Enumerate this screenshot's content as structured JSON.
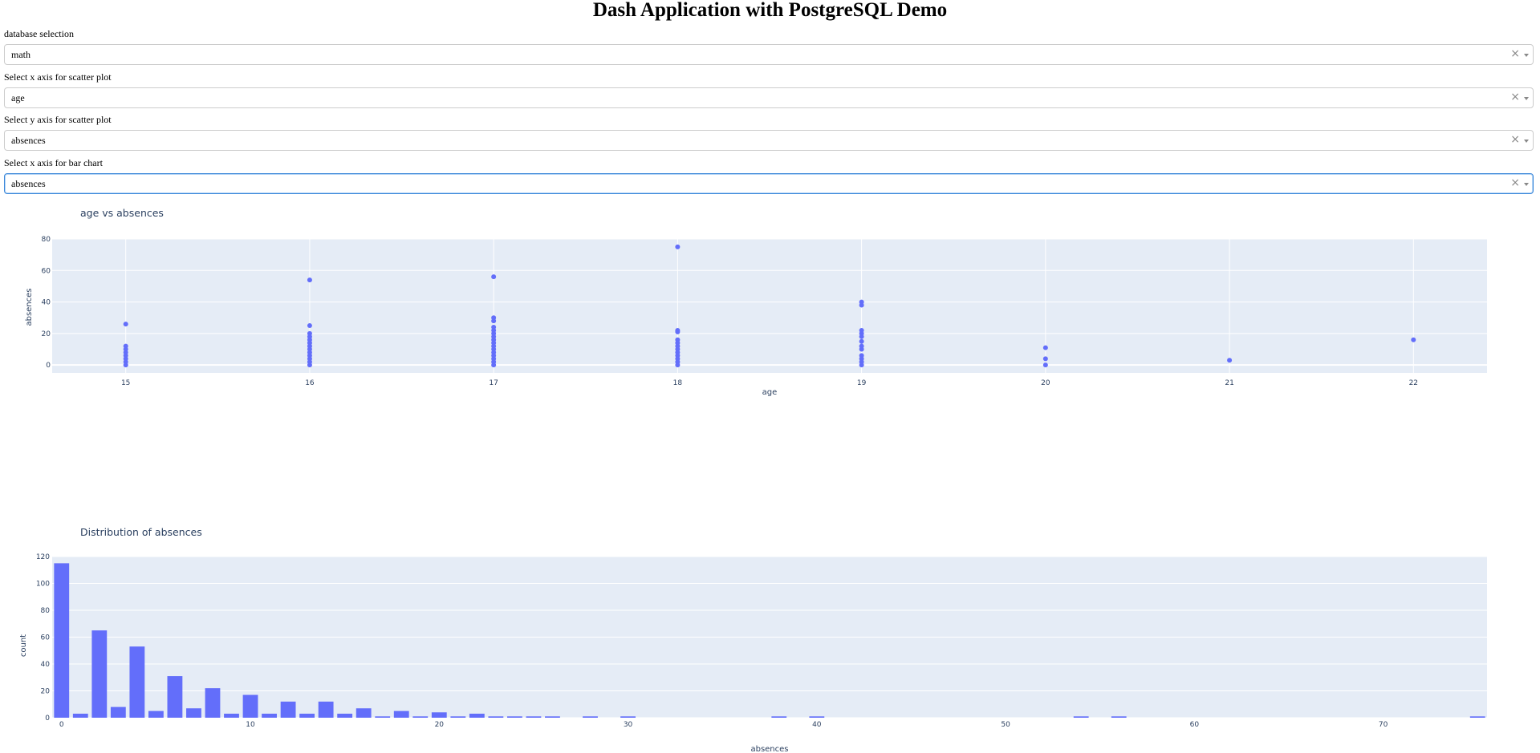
{
  "page": {
    "title": "Dash Application with PostgreSQL Demo"
  },
  "controls": [
    {
      "label": "database selection",
      "value": "math",
      "focused": false
    },
    {
      "label": "Select x axis for scatter plot",
      "value": "age",
      "focused": false
    },
    {
      "label": "Select y axis for scatter plot",
      "value": "absences",
      "focused": false
    },
    {
      "label": "Select x axis for bar chart",
      "value": "absences",
      "focused": true
    }
  ],
  "icons": {
    "clear": "×",
    "clear_name": "clear-icon",
    "arrow_name": "chevron-down-icon"
  },
  "colors": {
    "marker": "#636efa",
    "plot_bg": "#e5ecf6",
    "text": "#2a3f5f",
    "focus": "#3b87d9"
  },
  "chart_data": [
    {
      "type": "scatter",
      "title": "age vs absences",
      "xlabel": "age",
      "ylabel": "absences",
      "xlim": [
        14.6,
        22.4
      ],
      "ylim": [
        -5,
        80
      ],
      "xticks": [
        15,
        16,
        17,
        18,
        19,
        20,
        21,
        22
      ],
      "yticks": [
        0,
        20,
        40,
        60,
        80
      ],
      "grid": true,
      "points": [
        [
          15,
          0
        ],
        [
          15,
          2
        ],
        [
          15,
          4
        ],
        [
          15,
          6
        ],
        [
          15,
          8
        ],
        [
          15,
          10
        ],
        [
          15,
          12
        ],
        [
          15,
          26
        ],
        [
          16,
          0
        ],
        [
          16,
          2
        ],
        [
          16,
          4
        ],
        [
          16,
          6
        ],
        [
          16,
          8
        ],
        [
          16,
          10
        ],
        [
          16,
          12
        ],
        [
          16,
          14
        ],
        [
          16,
          16
        ],
        [
          16,
          18
        ],
        [
          16,
          20
        ],
        [
          16,
          25
        ],
        [
          16,
          54
        ],
        [
          17,
          0
        ],
        [
          17,
          2
        ],
        [
          17,
          4
        ],
        [
          17,
          6
        ],
        [
          17,
          8
        ],
        [
          17,
          10
        ],
        [
          17,
          12
        ],
        [
          17,
          14
        ],
        [
          17,
          16
        ],
        [
          17,
          18
        ],
        [
          17,
          20
        ],
        [
          17,
          22
        ],
        [
          17,
          24
        ],
        [
          17,
          28
        ],
        [
          17,
          30
        ],
        [
          17,
          56
        ],
        [
          18,
          0
        ],
        [
          18,
          2
        ],
        [
          18,
          4
        ],
        [
          18,
          6
        ],
        [
          18,
          8
        ],
        [
          18,
          10
        ],
        [
          18,
          12
        ],
        [
          18,
          14
        ],
        [
          18,
          16
        ],
        [
          18,
          21
        ],
        [
          18,
          22
        ],
        [
          18,
          75
        ],
        [
          19,
          0
        ],
        [
          19,
          2
        ],
        [
          19,
          4
        ],
        [
          19,
          6
        ],
        [
          19,
          10
        ],
        [
          19,
          12
        ],
        [
          19,
          15
        ],
        [
          19,
          18
        ],
        [
          19,
          20
        ],
        [
          19,
          22
        ],
        [
          19,
          38
        ],
        [
          19,
          40
        ],
        [
          20,
          0
        ],
        [
          20,
          4
        ],
        [
          20,
          11
        ],
        [
          21,
          3
        ],
        [
          22,
          16
        ]
      ]
    },
    {
      "type": "bar",
      "title": "Distribution of absences",
      "xlabel": "absences",
      "ylabel": "count",
      "xlim": [
        -0.5,
        75.5
      ],
      "ylim": [
        0,
        120
      ],
      "xticks": [
        0,
        10,
        20,
        30,
        40,
        50,
        60,
        70
      ],
      "yticks": [
        0,
        20,
        40,
        60,
        80,
        100,
        120
      ],
      "grid": true,
      "x": [
        0,
        1,
        2,
        3,
        4,
        5,
        6,
        7,
        8,
        9,
        10,
        11,
        12,
        13,
        14,
        15,
        16,
        17,
        18,
        19,
        20,
        21,
        22,
        23,
        24,
        25,
        26,
        28,
        30,
        38,
        40,
        54,
        56,
        75
      ],
      "values": [
        115,
        3,
        65,
        8,
        53,
        5,
        31,
        7,
        22,
        3,
        17,
        3,
        12,
        3,
        12,
        3,
        7,
        1,
        5,
        1,
        4,
        1,
        3,
        1,
        1,
        1,
        1,
        1,
        1,
        1,
        1,
        1,
        1,
        1
      ]
    }
  ]
}
